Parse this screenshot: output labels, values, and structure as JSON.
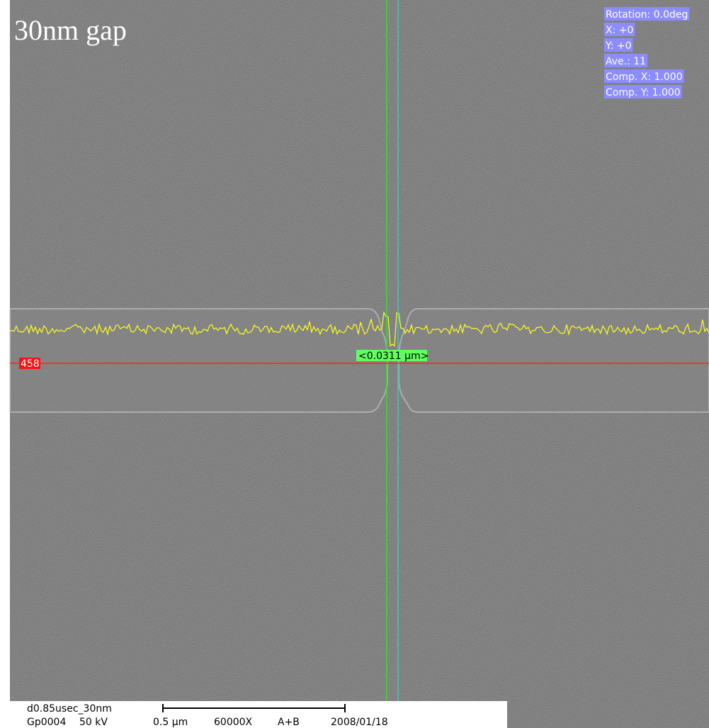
{
  "overlay": {
    "title": "30nm gap",
    "info": [
      "Rotation: 0.0deg",
      "X: +0",
      "Y: +0",
      "Ave.: 11",
      "Comp. X: 1.000",
      "Comp. Y: 1.000"
    ],
    "line_label": "458",
    "measurement": "<0.0311 μm>"
  },
  "footer": {
    "sample": "d0.85usec_30nm",
    "image_id": "Gp0004",
    "voltage": "50 kV",
    "scale": "0.5 μm",
    "magnification": "60000X",
    "detector": "A+B",
    "date": "2008/01/18"
  }
}
